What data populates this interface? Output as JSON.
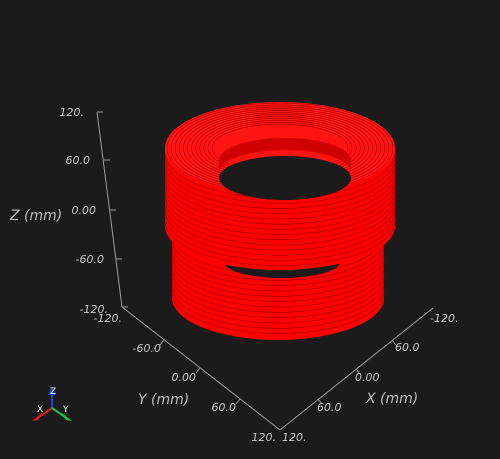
{
  "axes": {
    "z": {
      "title": "Z (mm)",
      "ticks": [
        "120.",
        "60.0",
        "0.00",
        "-60.0",
        "-120."
      ]
    },
    "y": {
      "title": "Y (mm)",
      "ticks": [
        "-120.",
        "-60.0",
        "0.00",
        "60.0",
        "120."
      ]
    },
    "x": {
      "title": "X (mm)",
      "ticks": [
        "120.",
        "60.0",
        "0.00",
        "60.0",
        "-120."
      ]
    }
  },
  "triad": {
    "x": "X",
    "y": "Y",
    "z": "Z"
  },
  "colors": {
    "background": "#1b1b1b",
    "coil": "#ff0000",
    "coil_shade": "#9a0000",
    "axis_line": "#9e9e9e",
    "triad_x": "#e02020",
    "triad_y": "#20c040",
    "triad_z": "#2040e0"
  },
  "scene": {
    "object": "two stacked coils",
    "coil_count": 2
  }
}
